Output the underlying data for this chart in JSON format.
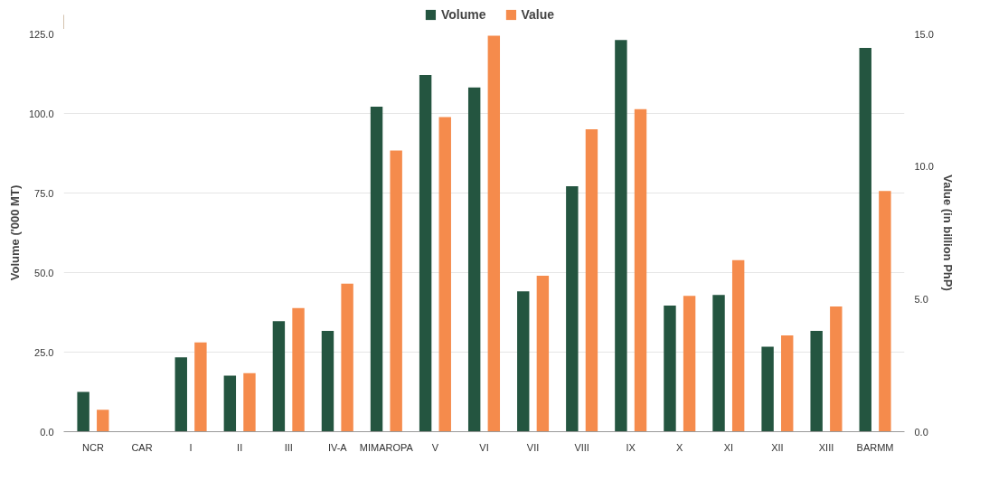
{
  "chart_data": {
    "type": "bar",
    "categories": [
      "NCR",
      "CAR",
      "I",
      "II",
      "III",
      "IV-A",
      "MIMAROPA",
      "V",
      "VI",
      "VII",
      "VIII",
      "IX",
      "X",
      "XI",
      "XII",
      "XIII",
      "BARMM"
    ],
    "series": [
      {
        "name": "Volume",
        "color": "#245540",
        "values": [
          12.5,
          null,
          23.4,
          17.6,
          34.7,
          31.7,
          102.1,
          112.1,
          108.2,
          44.1,
          77.1,
          123.1,
          39.6,
          43.0,
          26.7,
          31.7,
          120.6
        ]
      },
      {
        "name": "Value",
        "color": "#f58b4c",
        "axis": "y2",
        "values": [
          0.83,
          null,
          3.37,
          2.21,
          4.66,
          5.58,
          10.6,
          11.86,
          14.93,
          5.88,
          11.4,
          12.16,
          5.12,
          6.47,
          3.63,
          4.72,
          9.08
        ]
      }
    ],
    "ylabel": "Volume ('000 MT)",
    "y2label": "Value (in billion PhP)",
    "ylim": [
      0,
      125
    ],
    "yticks": [
      {
        "value": 0,
        "label": "0.0"
      },
      {
        "value": 25,
        "label": "25.0"
      },
      {
        "value": 50,
        "label": "50.0"
      },
      {
        "value": 75,
        "label": "75.0"
      },
      {
        "value": 100,
        "label": "100.0"
      },
      {
        "value": 125,
        "label": "125.0"
      }
    ],
    "y2lim": [
      0,
      15
    ],
    "y2ticks": [
      {
        "value": 0,
        "label": "0.0"
      },
      {
        "value": 5,
        "label": "5.0"
      },
      {
        "value": 10,
        "label": "10.0"
      },
      {
        "value": 15,
        "label": "15.0"
      }
    ],
    "grid": "y",
    "legend": "top"
  }
}
